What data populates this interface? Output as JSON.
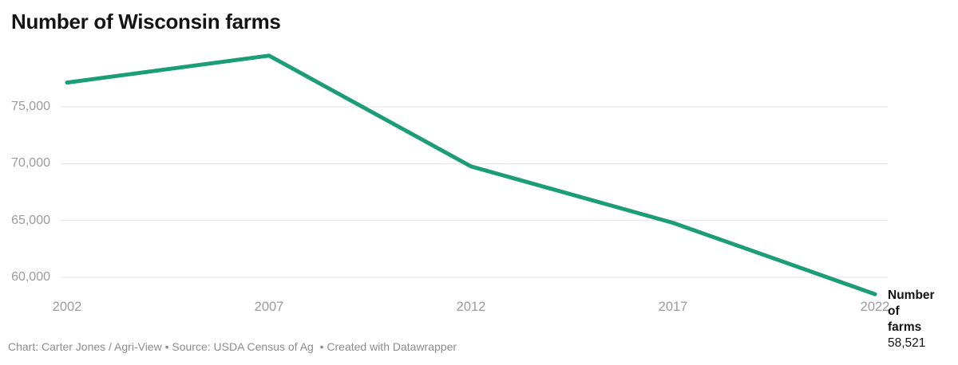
{
  "title": "Number of Wisconsin farms",
  "chart_data": {
    "type": "line",
    "title": "Number of Wisconsin farms",
    "x": [
      2002,
      2007,
      2012,
      2017,
      2022
    ],
    "x_tick_labels": [
      "2002",
      "2007",
      "2012",
      "2017",
      "2022"
    ],
    "series": [
      {
        "name": "Number of farms",
        "values": [
          77131,
          79500,
          69754,
          64793,
          58521
        ]
      }
    ],
    "last_point_label": "58,521",
    "xlabel": "",
    "ylabel": "",
    "ylim": [
      58000,
      80500
    ],
    "y_ticks": [
      75000,
      70000,
      65000,
      60000
    ],
    "y_tick_labels": [
      "75,000",
      "70,000",
      "65,000",
      "60,000"
    ],
    "grid": "horizontal",
    "legend_position": "none"
  },
  "annotation": {
    "label": "Number of farms",
    "value": "58,521"
  },
  "footer": {
    "text": "Chart: Carter Jones / Agri-View • Source: USDA Census of Ag  • Created with Datawrapper"
  },
  "colors": {
    "line": "#1b9e77",
    "title": "#141414",
    "axis_label": "#9b9b9b",
    "gridline": "#e3e3e3",
    "annotation_text": "#131313",
    "footer_text": "#8c8c8c",
    "background": "#ffffff"
  }
}
